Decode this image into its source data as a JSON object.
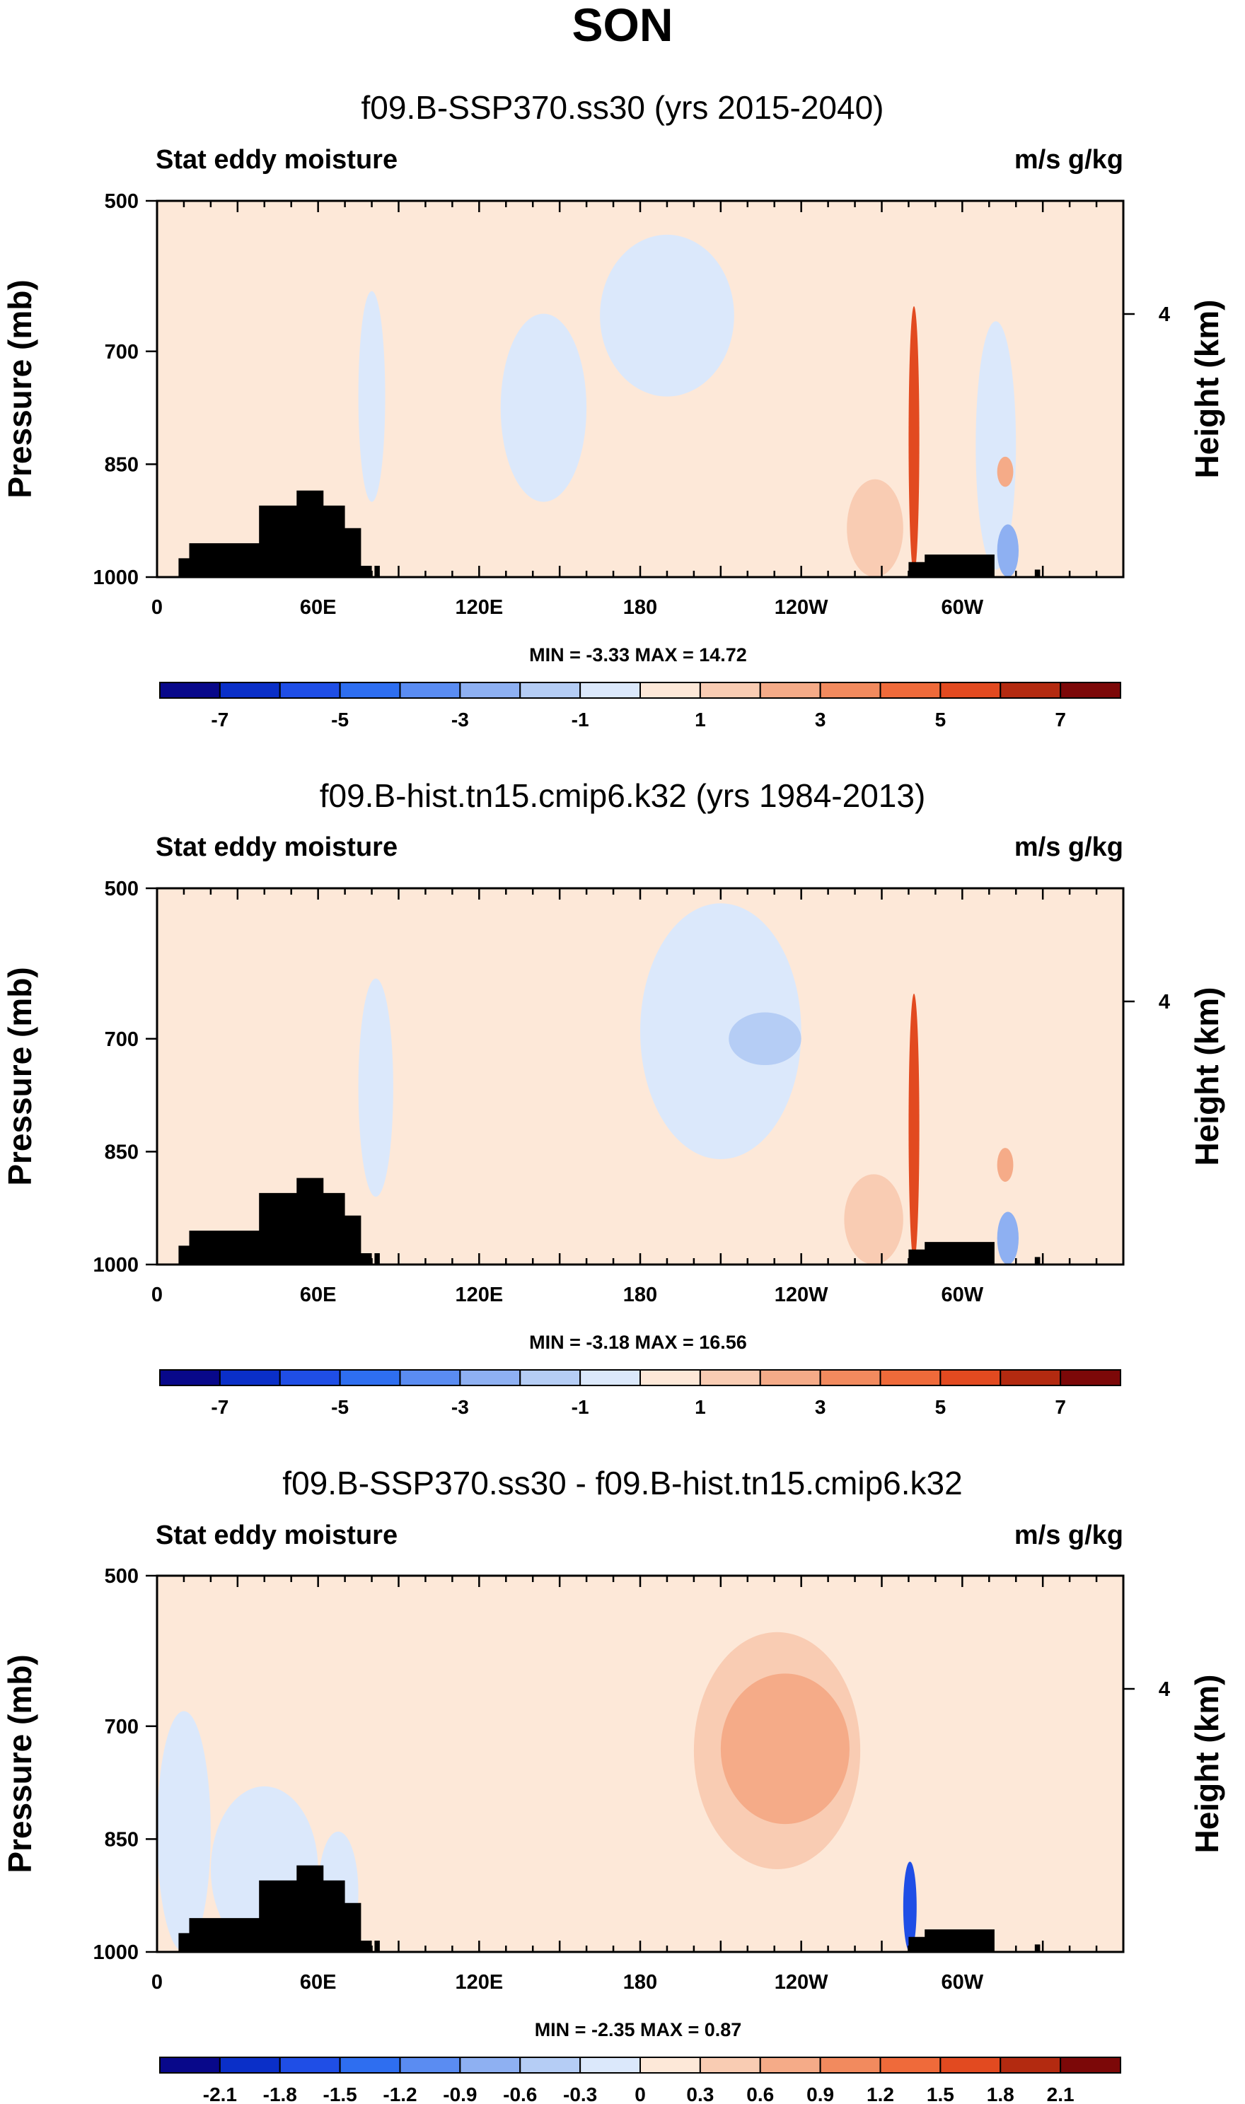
{
  "figure": {
    "season": "SON"
  },
  "chart_data": [
    {
      "type": "heatmap",
      "title": "f09.B-SSP370.ss30 (yrs 2015-2040)",
      "left_label": "Stat eddy moisture",
      "right_label": "m/s g/kg",
      "ylabel": "Pressure (mb)",
      "y2label": "Height (km)",
      "x_ticks": [
        "0",
        "60E",
        "120E",
        "180",
        "120W",
        "60W"
      ],
      "x_tick_values": [
        0,
        60,
        120,
        180,
        240,
        300
      ],
      "xlim": [
        0,
        360
      ],
      "y_ticks": [
        "500",
        "700",
        "850",
        "1000"
      ],
      "y_tick_values": [
        500,
        700,
        850,
        1000
      ],
      "ylim": [
        1000,
        500
      ],
      "y2_ticks": [
        "4"
      ],
      "y2_tick_values": [
        4
      ],
      "min_max_label": "MIN =  -3.33   MAX =  14.72",
      "min": -3.33,
      "max": 14.72,
      "colorbar": {
        "labels": [
          "-7",
          "-5",
          "-3",
          "-1",
          "1",
          "3",
          "5",
          "7"
        ],
        "levels": [
          -8,
          -7,
          -6,
          -5,
          -4,
          -3,
          -2,
          -1,
          0,
          1,
          2,
          3,
          4,
          5,
          6,
          7,
          8
        ],
        "colors": [
          "#08088a",
          "#0a2fc8",
          "#1f4ee6",
          "#2e6ef0",
          "#5a8cf2",
          "#8eb0f2",
          "#b5cdf5",
          "#dbe8fb",
          "#fde8d8",
          "#f9ccb3",
          "#f5ab88",
          "#f28a5e",
          "#ef6a3a",
          "#e24a20",
          "#b32a10",
          "#7c0808"
        ]
      },
      "features": [
        {
          "lon": [
            165,
            215
          ],
          "p": [
            545,
            760
          ],
          "value": -0.7
        },
        {
          "lon": [
            75,
            85
          ],
          "p": [
            620,
            900
          ],
          "value": -0.6
        },
        {
          "lon": [
            128,
            160
          ],
          "p": [
            650,
            900
          ],
          "value": -0.6
        },
        {
          "lon": [
            305,
            320
          ],
          "p": [
            660,
            990
          ],
          "value": -0.5
        },
        {
          "lon": [
            280,
            284
          ],
          "p": [
            640,
            995
          ],
          "value": 5.5
        },
        {
          "lon": [
            257,
            278
          ],
          "p": [
            870,
            1000
          ],
          "value": 1.5
        },
        {
          "lon": [
            313,
            319
          ],
          "p": [
            840,
            880
          ],
          "value": 2.2
        },
        {
          "lon": [
            313,
            321
          ],
          "p": [
            930,
            1000
          ],
          "value": -3.0
        }
      ]
    },
    {
      "type": "heatmap",
      "title": "f09.B-hist.tn15.cmip6.k32 (yrs 1984-2013)",
      "left_label": "Stat eddy moisture",
      "right_label": "m/s g/kg",
      "ylabel": "Pressure (mb)",
      "y2label": "Height (km)",
      "x_ticks": [
        "0",
        "60E",
        "120E",
        "180",
        "120W",
        "60W"
      ],
      "x_tick_values": [
        0,
        60,
        120,
        180,
        240,
        300
      ],
      "xlim": [
        0,
        360
      ],
      "y_ticks": [
        "500",
        "700",
        "850",
        "1000"
      ],
      "y_tick_values": [
        500,
        700,
        850,
        1000
      ],
      "ylim": [
        1000,
        500
      ],
      "y2_ticks": [
        "4"
      ],
      "y2_tick_values": [
        4
      ],
      "min_max_label": "MIN =  -3.18   MAX =  16.56",
      "min": -3.18,
      "max": 16.56,
      "colorbar": {
        "labels": [
          "-7",
          "-5",
          "-3",
          "-1",
          "1",
          "3",
          "5",
          "7"
        ],
        "levels": [
          -8,
          -7,
          -6,
          -5,
          -4,
          -3,
          -2,
          -1,
          0,
          1,
          2,
          3,
          4,
          5,
          6,
          7,
          8
        ],
        "colors": [
          "#08088a",
          "#0a2fc8",
          "#1f4ee6",
          "#2e6ef0",
          "#5a8cf2",
          "#8eb0f2",
          "#b5cdf5",
          "#dbe8fb",
          "#fde8d8",
          "#f9ccb3",
          "#f5ab88",
          "#f28a5e",
          "#ef6a3a",
          "#e24a20",
          "#b32a10",
          "#7c0808"
        ]
      },
      "features": [
        {
          "lon": [
            180,
            240
          ],
          "p": [
            520,
            860
          ],
          "value": -0.8
        },
        {
          "lon": [
            213,
            240
          ],
          "p": [
            665,
            735
          ],
          "value": -1.5
        },
        {
          "lon": [
            75,
            88
          ],
          "p": [
            620,
            910
          ],
          "value": -0.6
        },
        {
          "lon": [
            280,
            284
          ],
          "p": [
            640,
            995
          ],
          "value": 5.8
        },
        {
          "lon": [
            256,
            278
          ],
          "p": [
            880,
            1000
          ],
          "value": 1.6
        },
        {
          "lon": [
            313,
            319
          ],
          "p": [
            845,
            890
          ],
          "value": 2.4
        },
        {
          "lon": [
            313,
            321
          ],
          "p": [
            930,
            1000
          ],
          "value": -3.0
        }
      ]
    },
    {
      "type": "heatmap",
      "title": "f09.B-SSP370.ss30 - f09.B-hist.tn15.cmip6.k32",
      "left_label": "Stat eddy moisture",
      "right_label": "m/s g/kg",
      "ylabel": "Pressure (mb)",
      "y2label": "Height (km)",
      "x_ticks": [
        "0",
        "60E",
        "120E",
        "180",
        "120W",
        "60W"
      ],
      "x_tick_values": [
        0,
        60,
        120,
        180,
        240,
        300
      ],
      "xlim": [
        0,
        360
      ],
      "y_ticks": [
        "500",
        "700",
        "850",
        "1000"
      ],
      "y_tick_values": [
        500,
        700,
        850,
        1000
      ],
      "ylim": [
        1000,
        500
      ],
      "y2_ticks": [
        "4"
      ],
      "y2_tick_values": [
        4
      ],
      "min_max_label": "MIN =  -2.35   MAX =   0.87",
      "min": -2.35,
      "max": 0.87,
      "colorbar": {
        "labels": [
          "-2.1",
          "-1.8",
          "-1.5",
          "-1.2",
          "-0.9",
          "-0.6",
          "-0.3",
          "0",
          "0.3",
          "0.6",
          "0.9",
          "1.2",
          "1.5",
          "1.8",
          "2.1"
        ],
        "levels": [
          -2.4,
          -2.1,
          -1.8,
          -1.5,
          -1.2,
          -0.9,
          -0.6,
          -0.3,
          0,
          0.3,
          0.6,
          0.9,
          1.2,
          1.5,
          1.8,
          2.1,
          2.4
        ],
        "colors": [
          "#08088a",
          "#0a2fc8",
          "#1f4ee6",
          "#2e6ef0",
          "#5a8cf2",
          "#8eb0f2",
          "#b5cdf5",
          "#dbe8fb",
          "#fde8d8",
          "#f9ccb3",
          "#f5ab88",
          "#f28a5e",
          "#ef6a3a",
          "#e24a20",
          "#b32a10",
          "#7c0808"
        ]
      },
      "features": [
        {
          "lon": [
            200,
            262
          ],
          "p": [
            575,
            890
          ],
          "value": 0.35
        },
        {
          "lon": [
            210,
            258
          ],
          "p": [
            630,
            830
          ],
          "value": 0.65
        },
        {
          "lon": [
            0,
            20
          ],
          "p": [
            680,
            1000
          ],
          "value": -0.15
        },
        {
          "lon": [
            20,
            60
          ],
          "p": [
            780,
            1000
          ],
          "value": -0.12
        },
        {
          "lon": [
            278,
            283
          ],
          "p": [
            880,
            1000
          ],
          "value": -1.6
        },
        {
          "lon": [
            60,
            75
          ],
          "p": [
            840,
            1000
          ],
          "value": -0.1
        }
      ]
    }
  ]
}
